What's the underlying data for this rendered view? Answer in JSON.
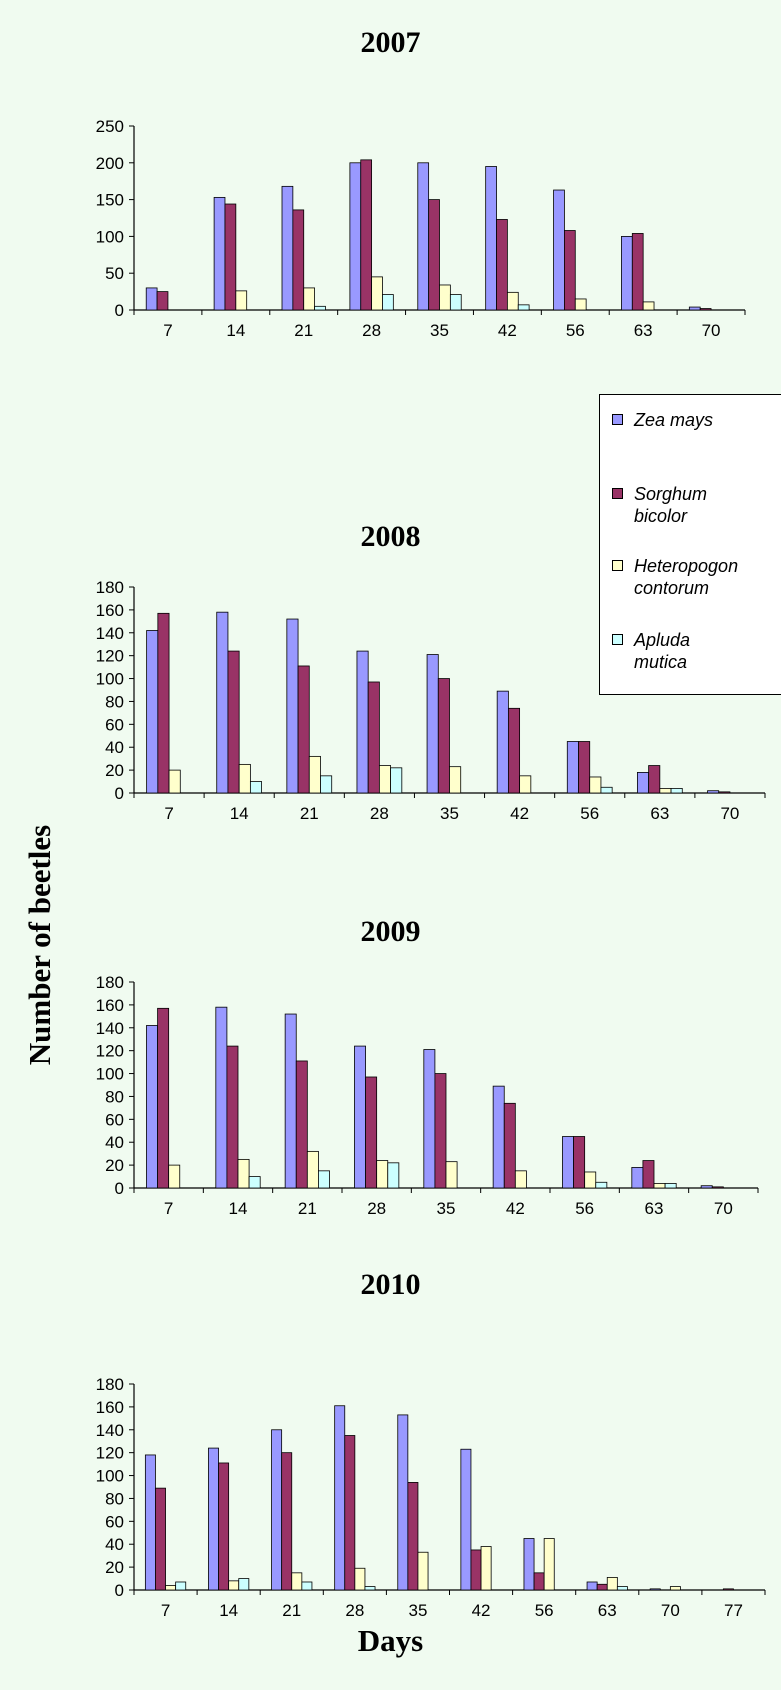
{
  "axis_labels": {
    "y": "Number of beetles",
    "x": "Days"
  },
  "legend": {
    "items": [
      {
        "label": "Zea mays",
        "color": "#9999ff"
      },
      {
        "label": "Sorghum\nbicolor",
        "color": "#993366"
      },
      {
        "label": "Heteropogon\ncontorum",
        "color": "#ffffcc"
      },
      {
        "label": "Apluda\nmutica",
        "color": "#ccffff"
      }
    ]
  },
  "chart_data": [
    {
      "type": "bar",
      "title": "2007",
      "ylim": [
        0,
        250
      ],
      "yticks": [
        0,
        50,
        100,
        150,
        200,
        250
      ],
      "categories": [
        "7",
        "14",
        "21",
        "28",
        "35",
        "42",
        "56",
        "63",
        "70"
      ],
      "series": [
        {
          "name": "Zea mays",
          "values": [
            30,
            153,
            168,
            200,
            200,
            195,
            163,
            100,
            4
          ]
        },
        {
          "name": "Sorghum bicolor",
          "values": [
            25,
            144,
            136,
            204,
            150,
            123,
            108,
            104,
            2
          ]
        },
        {
          "name": "Heteropogon contorum",
          "values": [
            0,
            26,
            30,
            45,
            34,
            24,
            15,
            11,
            0
          ]
        },
        {
          "name": "Apluda mutica",
          "values": [
            0,
            0,
            5,
            21,
            21,
            7,
            0,
            0,
            0
          ]
        }
      ]
    },
    {
      "type": "bar",
      "title": "2008",
      "ylim": [
        0,
        180
      ],
      "yticks": [
        0,
        20,
        40,
        60,
        80,
        100,
        120,
        140,
        160,
        180
      ],
      "categories": [
        "7",
        "14",
        "21",
        "28",
        "35",
        "42",
        "56",
        "63",
        "70"
      ],
      "series": [
        {
          "name": "Zea mays",
          "values": [
            142,
            158,
            152,
            124,
            121,
            89,
            45,
            18,
            2
          ]
        },
        {
          "name": "Sorghum bicolor",
          "values": [
            157,
            124,
            111,
            97,
            100,
            74,
            45,
            24,
            1
          ]
        },
        {
          "name": "Heteropogon contorum",
          "values": [
            20,
            25,
            32,
            24,
            23,
            15,
            14,
            4,
            0
          ]
        },
        {
          "name": "Apluda mutica",
          "values": [
            0,
            10,
            15,
            22,
            0,
            0,
            5,
            4,
            0
          ]
        }
      ]
    },
    {
      "type": "bar",
      "title": "2009",
      "ylim": [
        0,
        180
      ],
      "yticks": [
        0,
        20,
        40,
        60,
        80,
        100,
        120,
        140,
        160,
        180
      ],
      "categories": [
        "7",
        "14",
        "21",
        "28",
        "35",
        "42",
        "56",
        "63",
        "70"
      ],
      "series": [
        {
          "name": "Zea mays",
          "values": [
            142,
            158,
            152,
            124,
            121,
            89,
            45,
            18,
            2
          ]
        },
        {
          "name": "Sorghum bicolor",
          "values": [
            157,
            124,
            111,
            97,
            100,
            74,
            45,
            24,
            1
          ]
        },
        {
          "name": "Heteropogon contorum",
          "values": [
            20,
            25,
            32,
            24,
            23,
            15,
            14,
            4,
            0
          ]
        },
        {
          "name": "Apluda mutica",
          "values": [
            0,
            10,
            15,
            22,
            0,
            0,
            5,
            4,
            0
          ]
        }
      ]
    },
    {
      "type": "bar",
      "title": "2010",
      "ylim": [
        0,
        180
      ],
      "yticks": [
        0,
        20,
        40,
        60,
        80,
        100,
        120,
        140,
        160,
        180
      ],
      "categories": [
        "7",
        "14",
        "21",
        "28",
        "35",
        "42",
        "56",
        "63",
        "70",
        "77"
      ],
      "series": [
        {
          "name": "Zea mays",
          "values": [
            118,
            124,
            140,
            161,
            153,
            123,
            45,
            7,
            1,
            0
          ]
        },
        {
          "name": "Sorghum bicolor",
          "values": [
            89,
            111,
            120,
            135,
            94,
            35,
            15,
            5,
            0,
            1
          ]
        },
        {
          "name": "Heteropogon contorum",
          "values": [
            4,
            8,
            15,
            19,
            33,
            38,
            45,
            11,
            3,
            0
          ]
        },
        {
          "name": "Apluda mutica",
          "values": [
            7,
            10,
            7,
            3,
            0,
            0,
            0,
            3,
            0,
            0
          ]
        }
      ]
    }
  ]
}
